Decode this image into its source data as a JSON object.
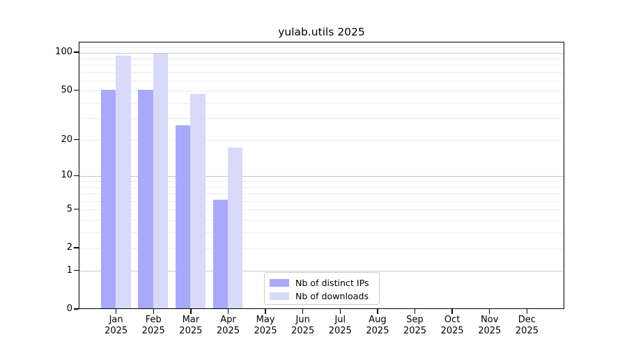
{
  "chart_data": {
    "type": "bar",
    "title": "yulab.utils 2025",
    "categories": [
      "Jan",
      "Feb",
      "Mar",
      "Apr",
      "May",
      "Jun",
      "Jul",
      "Aug",
      "Sep",
      "Oct",
      "Nov",
      "Dec"
    ],
    "year_label": "2025",
    "series": [
      {
        "name": "Nb of distinct IPs",
        "color": "#a9a9fa",
        "values": [
          50,
          50,
          26,
          6,
          0,
          0,
          0,
          0,
          0,
          0,
          0,
          0
        ]
      },
      {
        "name": "Nb of downloads",
        "color": "#d9d9fa",
        "values": [
          93,
          97,
          46,
          17,
          0,
          0,
          0,
          0,
          0,
          0,
          0,
          0
        ]
      }
    ],
    "yscale": "log1p",
    "ylim": [
      0,
      121
    ],
    "ytick_labels": [
      0,
      1,
      2,
      5,
      10,
      20,
      50,
      100
    ],
    "ygrid_major": [
      1,
      10,
      100
    ],
    "ygrid_minor": [
      2,
      3,
      4,
      5,
      6,
      7,
      8,
      9,
      20,
      30,
      40,
      50,
      60,
      70,
      80,
      90,
      110
    ],
    "xlabel": "",
    "ylabel": "",
    "grid": true,
    "legend": {
      "position": "bottom-center",
      "entries": [
        "Nb of distinct IPs",
        "Nb of downloads"
      ]
    },
    "colors": {
      "spine": "#000000",
      "grid_major": "#c8c8c8",
      "grid_minor": "#ededed",
      "text": "#000000",
      "background": "#ffffff"
    }
  }
}
